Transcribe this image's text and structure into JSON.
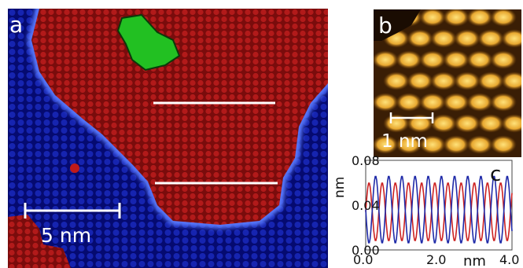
{
  "figure": {
    "panel_a": {
      "label": "a",
      "scale_bar": "5 nm"
    },
    "panel_b": {
      "label": "b",
      "scale_bar": "1 nm"
    },
    "panel_c": {
      "label": "c"
    }
  },
  "chart_data": {
    "type": "line",
    "xlabel": "nm",
    "ylabel": "nm",
    "xlim": [
      0.0,
      4.0
    ],
    "ylim": [
      0.0,
      0.08
    ],
    "xticks": [
      "0.0",
      "2.0",
      "4.0"
    ],
    "yticks": [
      "0.00",
      "0.04",
      "0.08"
    ],
    "grid": false,
    "series": [
      {
        "color": "#cc2222",
        "period_nm": 0.36,
        "mean": 0.034,
        "amplitude": 0.026,
        "phase": 0.0
      },
      {
        "color": "#1f2aa8",
        "period_nm": 0.36,
        "mean": 0.036,
        "amplitude": 0.03,
        "phase": 3.14
      }
    ]
  }
}
